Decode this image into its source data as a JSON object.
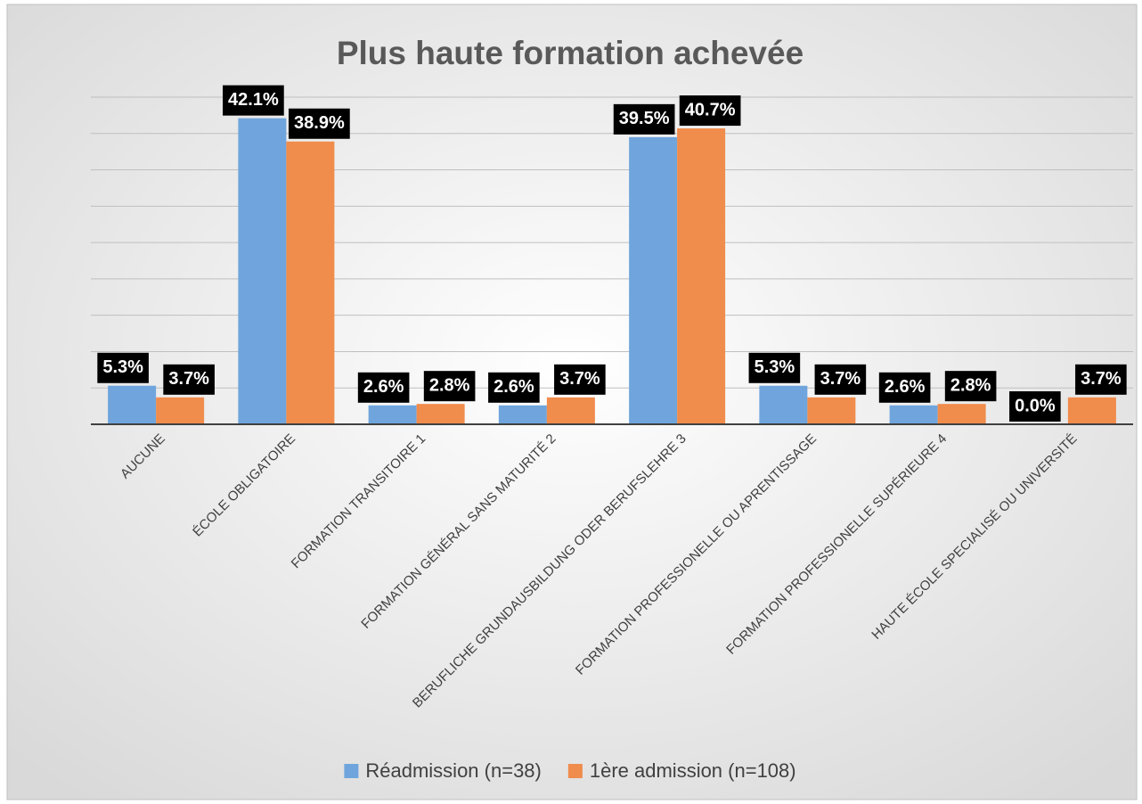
{
  "chart_data": {
    "type": "bar",
    "title": "Plus haute formation achevée",
    "categories": [
      "AUCUNE",
      "ÉCOLE OBLIGATOIRE",
      "FORMATION TRANSITOIRE 1",
      "FORMATION GÉNÉRAL SANS MATURITÉ 2",
      "BERUFLICHE GRUNDAUSBILDUNG ODER BERUFSLEHRE 3",
      "FORMATION PROFESSIONELLE OU APRENTISSAGE",
      "FORMATION PROFESSIONELLE SUPÉRIEURE 4",
      "HAUTE ÉCOLE SPECIALISÉ OU UNIVERSITÉ"
    ],
    "series": [
      {
        "name": "Réadmission (n=38)",
        "color": "#6fa5dc",
        "values": [
          5.3,
          42.1,
          2.6,
          2.6,
          39.5,
          5.3,
          2.6,
          0.0
        ],
        "value_labels": [
          "5.3%",
          "42.1%",
          "2.6%",
          "2.6%",
          "39.5%",
          "5.3%",
          "2.6%",
          "0.0%"
        ]
      },
      {
        "name": "1ère admission (n=108)",
        "color": "#f08c4c",
        "values": [
          3.7,
          38.9,
          2.8,
          3.7,
          40.7,
          3.7,
          2.8,
          3.7
        ],
        "value_labels": [
          "3.7%",
          "38.9%",
          "2.8%",
          "3.7%",
          "40.7%",
          "3.7%",
          "2.8%",
          "3.7%"
        ]
      }
    ],
    "ylim": [
      0,
      45
    ],
    "yticks": [
      0,
      5,
      10,
      15,
      20,
      25,
      30,
      35,
      40,
      45
    ],
    "grid": true,
    "legend": "bottom"
  }
}
